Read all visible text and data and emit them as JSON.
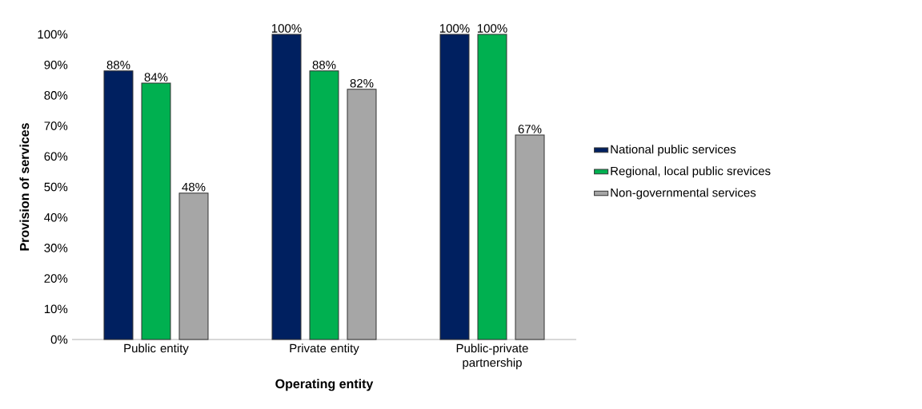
{
  "chart_data": {
    "type": "bar",
    "xlabel": "Operating entity",
    "ylabel": "Provision of services",
    "categories": [
      "Public entity",
      "Private entity",
      "Public-private partnership"
    ],
    "series": [
      {
        "name": "National public services",
        "color": "#002060",
        "values": [
          88,
          100,
          100
        ],
        "value_labels": [
          "88%",
          "100%",
          "100%"
        ]
      },
      {
        "name": "Regional, local public srevices",
        "color": "#00b050",
        "values": [
          84,
          88,
          100
        ],
        "value_labels": [
          "84%",
          "88%",
          "100%"
        ]
      },
      {
        "name": "Non-governmental services",
        "color": "#a6a6a6",
        "values": [
          48,
          82,
          67
        ],
        "value_labels": [
          "48%",
          "82%",
          "67%"
        ]
      }
    ],
    "ylim": [
      0,
      100
    ],
    "yticks": [
      {
        "value": 0,
        "label": "0%"
      },
      {
        "value": 10,
        "label": "10%"
      },
      {
        "value": 20,
        "label": "20%"
      },
      {
        "value": 30,
        "label": "30%"
      },
      {
        "value": 40,
        "label": "40%"
      },
      {
        "value": 50,
        "label": "50%"
      },
      {
        "value": 60,
        "label": "60%"
      },
      {
        "value": 70,
        "label": "70%"
      },
      {
        "value": 80,
        "label": "80%"
      },
      {
        "value": 90,
        "label": "90%"
      },
      {
        "value": 100,
        "label": "100%"
      }
    ],
    "legend": "right"
  }
}
